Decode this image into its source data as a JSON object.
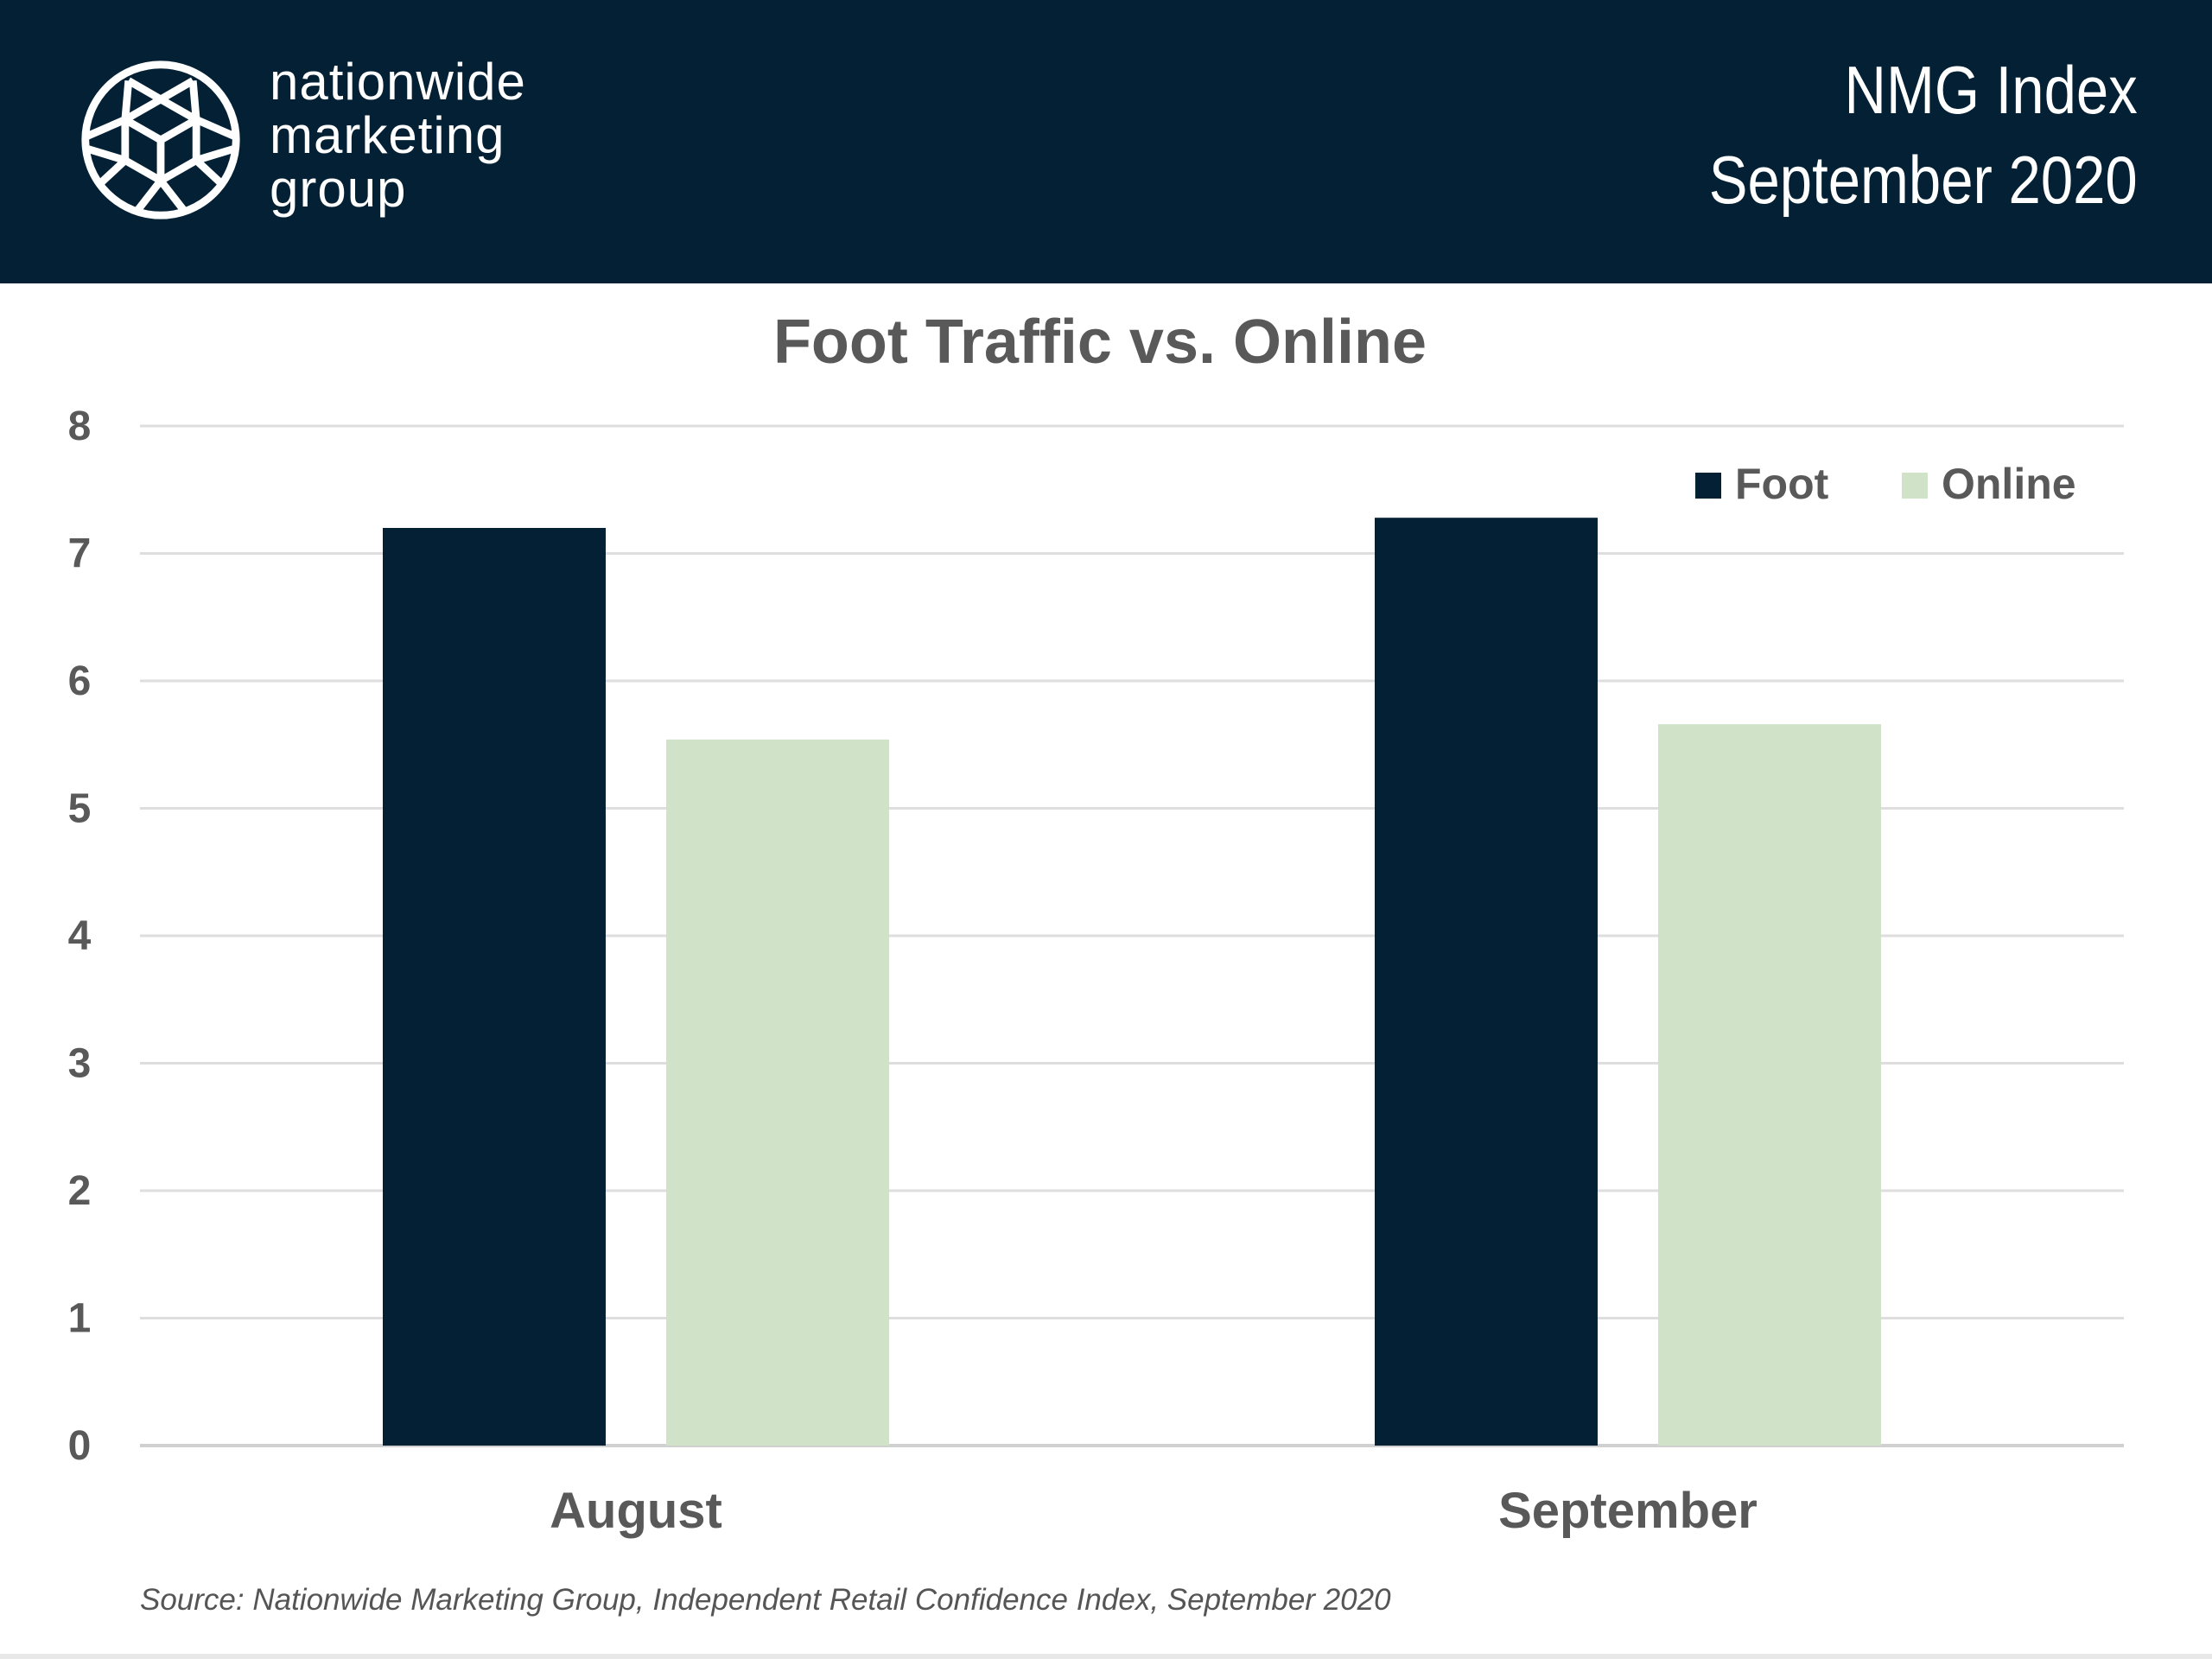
{
  "header": {
    "logo_lines": [
      "nationwide",
      "marketing",
      "group"
    ],
    "title_line1": "NMG Index",
    "title_line2": "September 2020",
    "background": "#042034"
  },
  "chart_data": {
    "type": "bar",
    "title": "Foot Traffic vs. Online",
    "categories": [
      "August",
      "September"
    ],
    "series": [
      {
        "name": "Foot",
        "values": [
          7.2,
          7.28
        ],
        "color": "#042034"
      },
      {
        "name": "Online",
        "values": [
          5.54,
          5.66
        ],
        "color": "#d0e2c8"
      }
    ],
    "ylim": [
      0,
      8
    ],
    "yticks": [
      "0",
      "1",
      "2",
      "3",
      "4",
      "5",
      "6",
      "7",
      "8"
    ],
    "grid": true,
    "legend_position": "top-right",
    "xlabel": "",
    "ylabel": ""
  },
  "source": "Source: Nationwide Marketing Group, Independent Retail Confidence Index, September 2020"
}
